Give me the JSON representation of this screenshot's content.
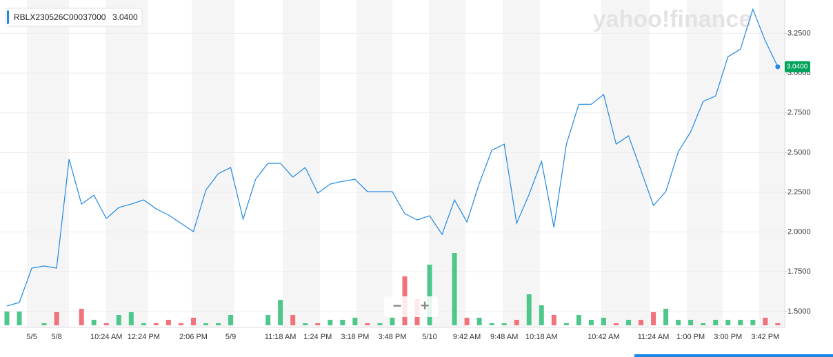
{
  "chart_data": {
    "type": "line",
    "series": [
      {
        "name": "RBLX230526C00037000",
        "color": "#1e88e5",
        "values": [
          1.535,
          1.556,
          1.773,
          1.786,
          1.773,
          2.458,
          2.176,
          2.232,
          2.085,
          2.154,
          2.176,
          2.202,
          2.146,
          2.107,
          2.055,
          2.003,
          2.263,
          2.367,
          2.406,
          2.081,
          2.332,
          2.432,
          2.432,
          2.345,
          2.406,
          2.245,
          2.302,
          2.319,
          2.332,
          2.254,
          2.254,
          2.254,
          2.115,
          2.076,
          2.102,
          1.985,
          2.202,
          2.063,
          2.306,
          2.514,
          2.553,
          2.055,
          2.237,
          2.445,
          2.029,
          2.553,
          2.804,
          2.804,
          2.865,
          2.553,
          2.605,
          2.388,
          2.167,
          2.254,
          2.505,
          2.631,
          2.822,
          2.856,
          3.103,
          3.151,
          3.402,
          3.203,
          3.04
        ]
      }
    ],
    "last_label": "3.0400",
    "last_label_color": "#00a35a",
    "categories": [
      null,
      null,
      "5/5",
      null,
      "5/8",
      null,
      null,
      null,
      "10:24 AM",
      null,
      null,
      "12:24 PM",
      null,
      null,
      null,
      "2:06 PM",
      null,
      null,
      "5/9",
      null,
      null,
      null,
      "11:18 AM",
      null,
      null,
      "1:24 PM",
      null,
      null,
      "3:18 PM",
      null,
      null,
      "3:48 PM",
      null,
      null,
      "5/10",
      null,
      null,
      "9:42 AM",
      null,
      null,
      "9:48 AM",
      null,
      null,
      "10:18 AM",
      null,
      null,
      null,
      null,
      "10:42 AM",
      null,
      null,
      null,
      "11:24 AM",
      null,
      null,
      "1:00 PM",
      null,
      null,
      "3:00 PM",
      null,
      null,
      "3:42 PM",
      null
    ],
    "volume": {
      "values": [
        20,
        20,
        null,
        3,
        19,
        null,
        24,
        8,
        3,
        15,
        19,
        3,
        3,
        8,
        3,
        11,
        3,
        3,
        15,
        null,
        null,
        15,
        37,
        15,
        3,
        3,
        8,
        8,
        11,
        3,
        3,
        11,
        71,
        38,
        88,
        null,
        105,
        11,
        11,
        3,
        3,
        8,
        45,
        29,
        15,
        3,
        15,
        8,
        11,
        3,
        8,
        8,
        19,
        24,
        8,
        8,
        3,
        8,
        8,
        8,
        8,
        11,
        3
      ],
      "colors": [
        "#4ec88a",
        "#4ec88a",
        null,
        "#4ec88a",
        "#f0727a",
        null,
        "#f0727a",
        "#4ec88a",
        "#f0727a",
        "#4ec88a",
        "#4ec88a",
        "#4ec88a",
        "#f0727a",
        "#f0727a",
        "#f0727a",
        "#f0727a",
        "#4ec88a",
        "#4ec88a",
        "#4ec88a",
        null,
        null,
        "#4ec88a",
        "#4ec88a",
        "#f0727a",
        "#4ec88a",
        "#f0727a",
        "#4ec88a",
        "#4ec88a",
        "#4ec88a",
        "#f0727a",
        "#4ec88a",
        "#4ec88a",
        "#f0727a",
        "#f0727a",
        "#4ec88a",
        null,
        "#4ec88a",
        "#f0727a",
        "#4ec88a",
        "#4ec88a",
        "#4ec88a",
        "#f0727a",
        "#4ec88a",
        "#4ec88a",
        "#f0727a",
        "#4ec88a",
        "#4ec88a",
        "#4ec88a",
        "#4ec88a",
        "#f0727a",
        "#4ec88a",
        "#f0727a",
        "#f0727a",
        "#4ec88a",
        "#4ec88a",
        "#4ec88a",
        "#4ec88a",
        "#4ec88a",
        "#4ec88a",
        "#4ec88a",
        "#4ec88a",
        "#f0727a",
        "#f0727a"
      ]
    },
    "ylim": [
      1.4,
      3.46
    ],
    "yticks": [
      {
        "value": 1.5,
        "label": "1.5000"
      },
      {
        "value": 1.75,
        "label": "1.7500"
      },
      {
        "value": 2.0,
        "label": "2.0000"
      },
      {
        "value": 2.25,
        "label": "2.2500"
      },
      {
        "value": 2.5,
        "label": "2.5000"
      },
      {
        "value": 2.75,
        "label": "2.7500"
      },
      {
        "value": 3.0,
        "label": "3.0000"
      },
      {
        "value": 3.25,
        "label": "3.2500"
      }
    ],
    "grid": true,
    "watermark": "yahoo!finance",
    "zoom_buttons": [
      "−",
      "+"
    ]
  }
}
